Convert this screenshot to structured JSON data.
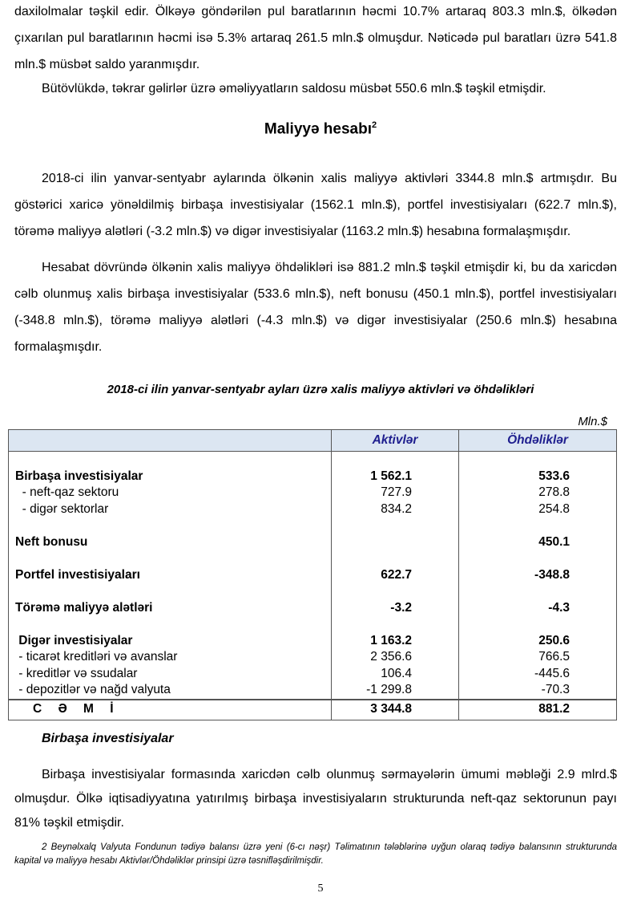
{
  "paragraphs_top": [
    "daxilolmalar təşkil edir. Ölkəyə göndərilən pul baratlarının həcmi 10.7% artaraq 803.3 mln.$, ölkədən çıxarılan pul baratlarının həcmi isə 5.3% artaraq 261.5 mln.$ olmuşdur. Nəticədə pul baratları üzrə 541.8 mln.$ müsbət saldo yaranmışdır.",
    "Bütövlükdə, təkrar gəlirlər üzrə əməliyyatların saldosu müsbət 550.6 mln.$ təşkil etmişdir."
  ],
  "section_title": "Maliyyə hesabı",
  "section_footnote_mark": "2",
  "paragraphs_mid": [
    "2018-ci ilin yanvar-sentyabr aylarında ölkənin xalis maliyyə aktivləri 3344.8 mln.$ artmışdır. Bu göstərici xaricə yönəldilmiş birbaşa investisiyalar (1562.1 mln.$), portfel investisiyaları (622.7 mln.$), törəmə maliyyə alətləri (-3.2 mln.$) və digər investisiyalar (1163.2 mln.$) hesabına formalaşmışdır.",
    "Hesabat dövründə ölkənin xalis maliyyə öhdəlikləri isə 881.2 mln.$ təşkil etmişdir ki, bu da xaricdən cəlb olunmuş xalis birbaşa investisiyalar (533.6 mln.$), neft bonusu (450.1 mln.$), portfel investisiyaları (-348.8 mln.$), törəmə maliyyə alətləri (-4.3 mln.$) və digər investisiyalar (250.6 mln.$) hesabına formalaşmışdır."
  ],
  "table": {
    "caption": "2018-ci ilin yanvar-sentyabr ayları üzrə xalis maliyyə aktivləri və öhdəlikləri",
    "unit": "Mln.$",
    "headers": [
      "",
      "Aktivlər",
      "Öhdəliklər"
    ],
    "rows": [
      {
        "label": "Birbaşa investisiyalar",
        "a": "1 562.1",
        "o": "533.6",
        "bold": true
      },
      {
        "label": "  - neft-qaz sektoru",
        "a": "727.9",
        "o": "278.8"
      },
      {
        "label": "  - digər sektorlar",
        "a": "834.2",
        "o": "254.8"
      },
      {
        "label": "Neft bonusu",
        "a": "",
        "o": "450.1",
        "bold": true
      },
      {
        "label": "Portfel investisiyaları",
        "a": "622.7",
        "o": "-348.8",
        "bold": true
      },
      {
        "label": "Törəmə maliyyə alətləri",
        "a": "-3.2",
        "o": "-4.3",
        "bold": true
      },
      {
        "label": " Digər investisiyalar",
        "a": "1 163.2",
        "o": "250.6",
        "bold": true
      },
      {
        "label": " - ticarət kreditləri və avanslar",
        "a": "2 356.6",
        "o": "766.5"
      },
      {
        "label": " - kreditlər və ssudalar",
        "a": "106.4",
        "o": "-445.6"
      },
      {
        "label": " - depozitlər və nağd valyuta",
        "a": "-1 299.8",
        "o": "-70.3"
      }
    ],
    "total": {
      "label": "C Ə M İ",
      "a": "3 344.8",
      "o": "881.2"
    }
  },
  "subheading": "Birbaşa investisiyalar",
  "paragraph_bottom": "Birbaşa investisiyalar formasında xaricdən cəlb olunmuş sərmayələrin ümumi məbləği 2.9 mlrd.$ olmuşdur. Ölkə iqtisadiyyatına yatırılmış birbaşa investisiyaların strukturunda neft-qaz sektorunun payı 81% təşkil etmişdir.",
  "footnote": "2 Beynəlxalq Valyuta Fondunun tədiyə balansı üzrə yeni (6-cı nəşr) Təlimatının tələblərinə uyğun olaraq tədiyə balansının strukturunda kapital və maliyyə hesabı Aktivlər/Öhdəliklər prinsipi üzrə təsnifləşdirilmişdir.",
  "page_number": "5"
}
